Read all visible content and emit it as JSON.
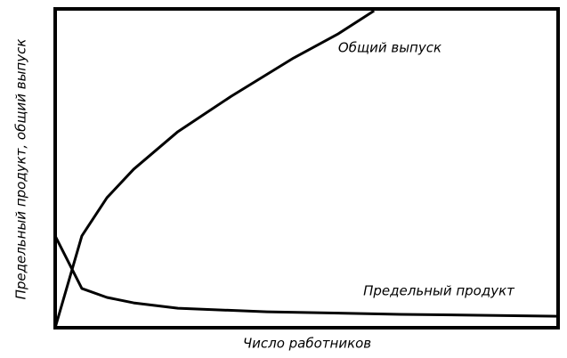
{
  "chart_data": {
    "type": "line",
    "x_label": "Число работников",
    "y_label": "Предельный продукт, общий выпуск",
    "xlim": [
      0,
      100
    ],
    "ylim": [
      0,
      100
    ],
    "series": [
      {
        "name": "Общий выпуск",
        "color": "#000000",
        "x": [
          0,
          5.3,
          10.3,
          15.6,
          24.4,
          35.0,
          47.4,
          56.3,
          63.4
        ],
        "values": [
          0,
          28.8,
          40.8,
          49.7,
          61.5,
          72.6,
          84.6,
          92.2,
          99.4
        ]
      },
      {
        "name": "Предельный продукт",
        "color": "#000000",
        "x": [
          0,
          5.3,
          10.3,
          15.6,
          24.4,
          42.1,
          68.7,
          100
        ],
        "values": [
          28.8,
          12.3,
          9.5,
          7.8,
          6.1,
          5.0,
          4.2,
          3.6
        ]
      }
    ]
  }
}
